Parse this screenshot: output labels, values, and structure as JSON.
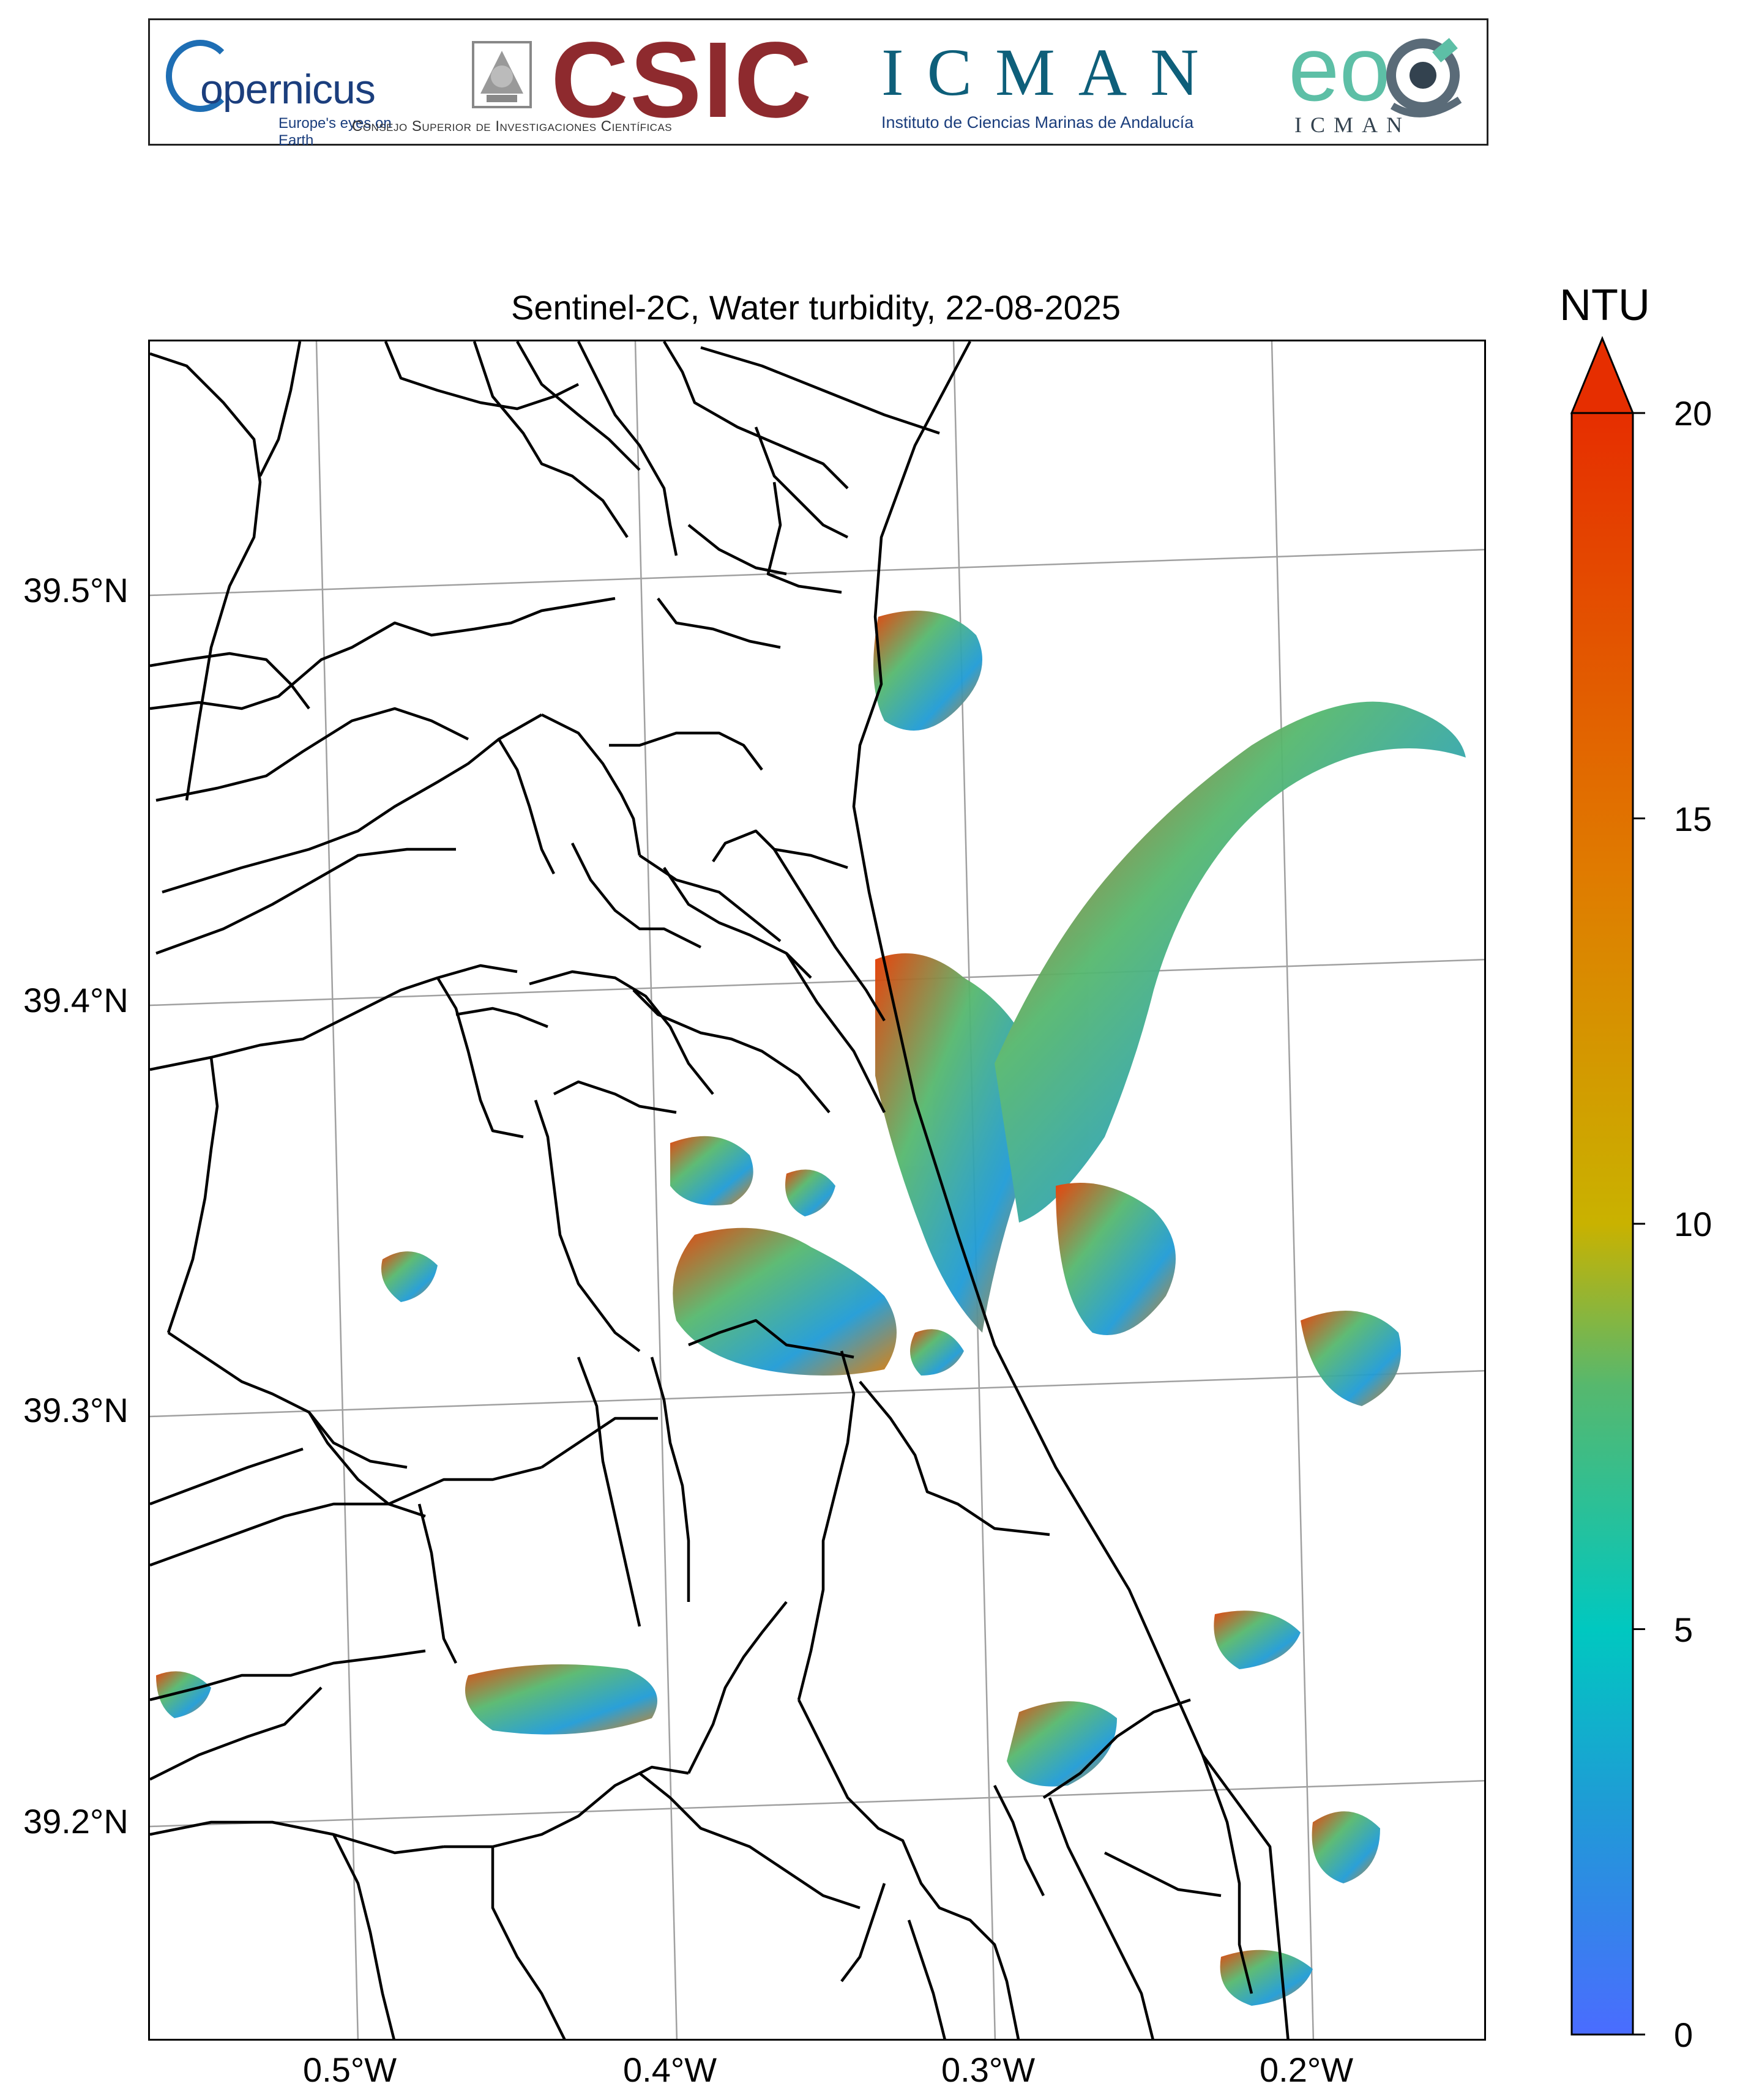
{
  "banner": {
    "copernicus": {
      "name": "opernicus",
      "tagline": "Europe's eyes on Earth"
    },
    "csic": {
      "name": "CSIC",
      "subtitle": "Consejo Superior de Investigaciones Científicas"
    },
    "icman": {
      "name": "ICMAN",
      "subtitle": "Instituto de Ciencias Marinas de Andalucía"
    },
    "eo": {
      "name": "eo",
      "subtitle": "ICMAN"
    }
  },
  "colors": {
    "land_border": "#000000",
    "grid": "#a0a0a0",
    "colormap": [
      "#4a6cff",
      "#1f9bd6",
      "#00c8c0",
      "#56b86e",
      "#c9b200",
      "#e07a00",
      "#e63a00",
      "#e62e00"
    ]
  },
  "map": {
    "title": "Sentinel-2C, Water turbidity, 22-08-2025",
    "lat_labels": [
      "39.5°N",
      "39.4°N",
      "39.3°N",
      "39.2°N"
    ],
    "lon_labels": [
      "0.5°W",
      "0.4°W",
      "0.3°W",
      "0.2°W"
    ],
    "extent": {
      "lon_min": -0.565,
      "lon_max": -0.145,
      "lat_min": 39.145,
      "lat_max": 39.563
    },
    "grid": true
  },
  "colorbar": {
    "unit": "NTU",
    "min": 0,
    "max": 20,
    "extend": "max",
    "tick_labels": [
      "0",
      "5",
      "10",
      "15",
      "20"
    ]
  }
}
